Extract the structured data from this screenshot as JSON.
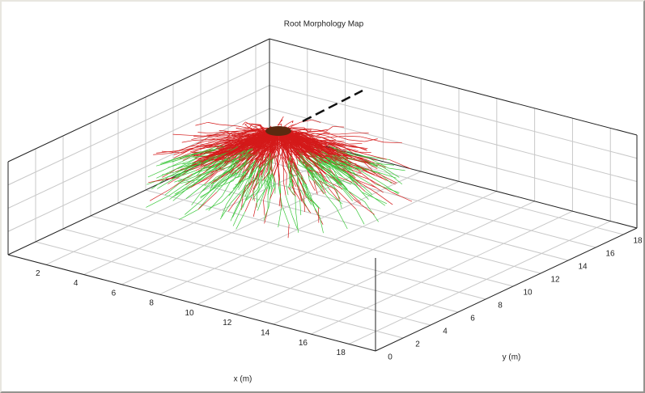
{
  "chart_data": {
    "type": "root-map-3d",
    "title": "Root Morphology Map",
    "xlabel": "x (m)",
    "ylabel": "y (m)",
    "xlim": [
      0,
      19.4
    ],
    "ylim": [
      0,
      19
    ],
    "xticks": [
      2,
      4,
      6,
      8,
      10,
      12,
      14,
      16,
      18
    ],
    "yticks": [
      0,
      2,
      4,
      6,
      8,
      10,
      12,
      14,
      16,
      18
    ],
    "grid": true
  }
}
